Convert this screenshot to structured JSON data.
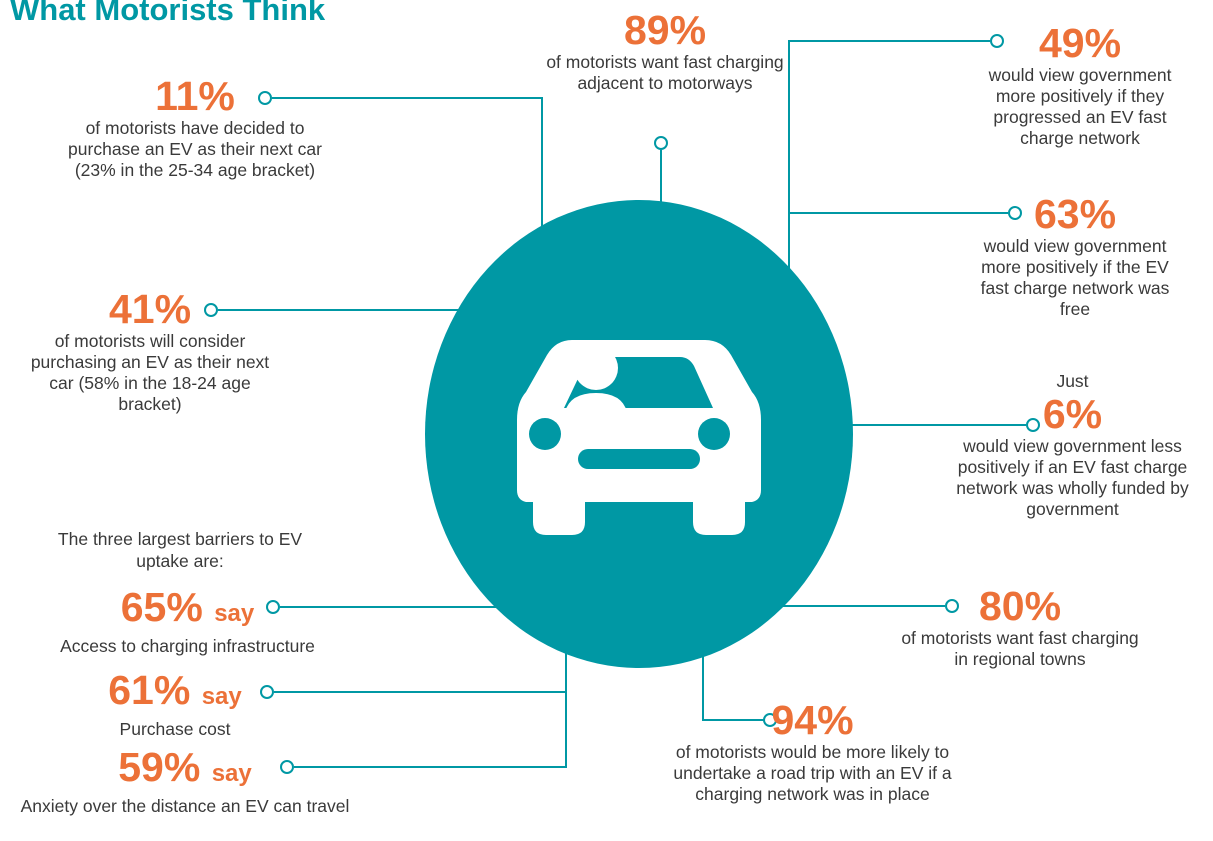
{
  "title": "What Motorists Think",
  "colors": {
    "accent": "#ec7138",
    "teal": "#0098a4",
    "text": "#3a3a3a"
  },
  "center_icon": "car-with-driver-icon",
  "stats": {
    "s11": {
      "value": "11%",
      "text": "of motorists have decided to purchase an EV as their next car (23% in the 25-34 age bracket)"
    },
    "s41": {
      "value": "41%",
      "text": "of motorists will consider purchasing an EV as their next car (58% in the 18-24 age bracket)"
    },
    "s89": {
      "value": "89%",
      "text": "of motorists want fast charging adjacent to motorways"
    },
    "s49": {
      "value": "49%",
      "text": "would view government more positively if they progressed an EV fast charge network"
    },
    "s63": {
      "value": "63%",
      "text": "would view government more positively if the EV fast charge network was free"
    },
    "s6": {
      "prefix": "Just",
      "value": "6%",
      "text": "would view government less positively if an EV fast charge network was wholly funded by government"
    },
    "s80": {
      "value": "80%",
      "text": "of motorists want fast charging in regional towns"
    },
    "s94": {
      "value": "94%",
      "text": "of motorists would be more likely to undertake a road trip with an EV if a charging network was in place"
    }
  },
  "barriers": {
    "intro": "The three largest barriers to EV uptake are:",
    "say": "say",
    "items": [
      {
        "value": "65%",
        "text": "Access to charging infrastructure"
      },
      {
        "value": "61%",
        "text": "Purchase cost"
      },
      {
        "value": "59%",
        "text": "Anxiety over the distance an EV can travel"
      }
    ]
  }
}
